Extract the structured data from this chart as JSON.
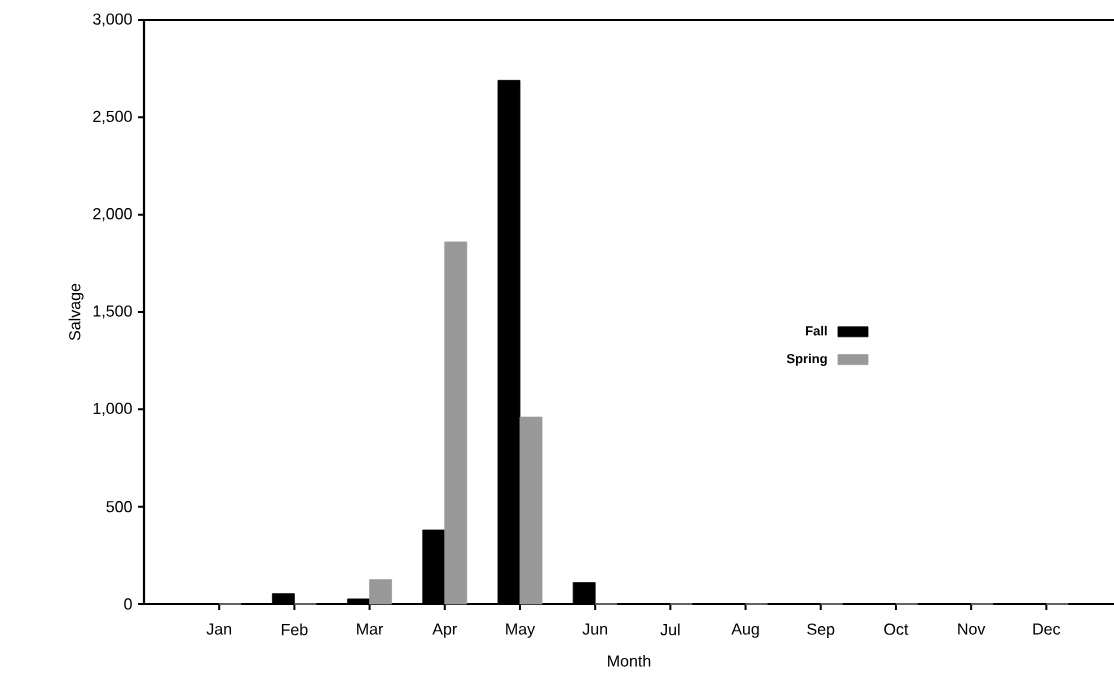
{
  "chart_data": {
    "type": "bar",
    "xlabel": "Month",
    "ylabel": "Salvage",
    "categories": [
      "Jan",
      "Feb",
      "Mar",
      "Apr",
      "May",
      "Jun",
      "Jul",
      "Aug",
      "Sep",
      "Oct",
      "Nov",
      "Dec"
    ],
    "series": [
      {
        "name": "Fall",
        "color": "#000000",
        "values": [
          0,
          53,
          26,
          380,
          2690,
          110,
          0,
          0,
          0,
          0,
          0,
          0
        ]
      },
      {
        "name": "Spring",
        "color": "#999999",
        "values": [
          0,
          0,
          125,
          1860,
          960,
          0,
          0,
          0,
          0,
          0,
          0,
          0
        ]
      }
    ],
    "ylim": [
      0,
      3000
    ],
    "yticks": [
      0,
      500,
      {
        "value": 1000,
        "label": "1,000"
      },
      {
        "value": 1500,
        "label": "1,500"
      },
      {
        "value": 2000,
        "label": "2,000"
      },
      {
        "value": 2500,
        "label": "2,500"
      },
      {
        "value": 3000,
        "label": "3,000"
      }
    ],
    "legend": "right",
    "grid": false
  }
}
